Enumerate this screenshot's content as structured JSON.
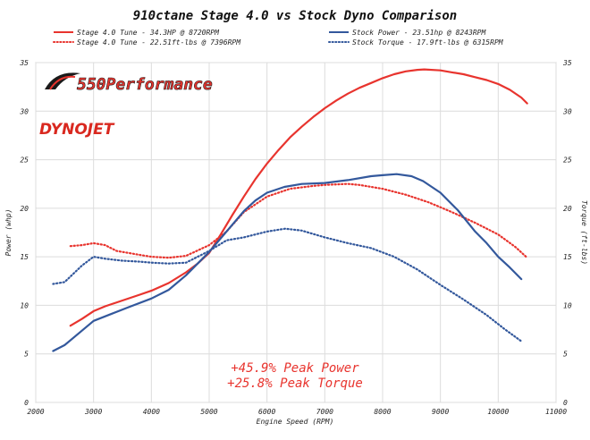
{
  "chart_data": {
    "type": "line",
    "title": "910ctane Stage 4.0 vs Stock Dyno Comparison",
    "xlabel": "Engine Speed (RPM)",
    "ylabel_left": "Power (whp)",
    "ylabel_right": "Torque (ft-lbs)",
    "xlim": [
      2000,
      11000
    ],
    "ylim": [
      0,
      35
    ],
    "xticks": [
      2000,
      3000,
      4000,
      5000,
      6000,
      7000,
      8000,
      9000,
      10000,
      11000
    ],
    "yticks": [
      0,
      5,
      10,
      15,
      20,
      25,
      30,
      35
    ],
    "grid": true,
    "legend_position": "top",
    "series": [
      {
        "name": "Stage 4.0 Tune - 34.3HP @ 8720RPM",
        "color": "#e8342e",
        "style": "solid",
        "axis": "left",
        "x": [
          2600,
          2800,
          3000,
          3200,
          3500,
          3800,
          4000,
          4300,
          4600,
          4800,
          5000,
          5200,
          5400,
          5600,
          5800,
          6000,
          6200,
          6400,
          6600,
          6800,
          7000,
          7200,
          7400,
          7600,
          7800,
          8000,
          8200,
          8400,
          8600,
          8720,
          9000,
          9200,
          9400,
          9600,
          9800,
          10000,
          10200,
          10400,
          10500
        ],
        "y": [
          7.9,
          8.6,
          9.4,
          9.9,
          10.5,
          11.1,
          11.5,
          12.3,
          13.4,
          14.3,
          15.4,
          17.3,
          19.3,
          21.2,
          23.0,
          24.6,
          26.0,
          27.3,
          28.4,
          29.4,
          30.3,
          31.1,
          31.8,
          32.4,
          32.9,
          33.4,
          33.8,
          34.1,
          34.25,
          34.3,
          34.2,
          34.0,
          33.8,
          33.5,
          33.2,
          32.8,
          32.2,
          31.4,
          30.8
        ]
      },
      {
        "name": "Stage 4.0 Tune - 22.51ft-lbs @ 7396RPM",
        "color": "#e8342e",
        "style": "dotted",
        "axis": "right",
        "x": [
          2600,
          2800,
          3000,
          3200,
          3400,
          3600,
          3800,
          4000,
          4300,
          4600,
          5000,
          5300,
          5600,
          6000,
          6400,
          6800,
          7000,
          7396,
          7600,
          8000,
          8400,
          8800,
          9200,
          9600,
          10000,
          10300,
          10500
        ],
        "y": [
          16.1,
          16.2,
          16.4,
          16.2,
          15.6,
          15.4,
          15.2,
          15.0,
          14.9,
          15.1,
          16.2,
          17.6,
          19.6,
          21.2,
          22.0,
          22.3,
          22.4,
          22.51,
          22.4,
          22.0,
          21.4,
          20.6,
          19.6,
          18.5,
          17.3,
          16.0,
          14.9
        ]
      },
      {
        "name": "Stock Power - 23.51hp @ 8243RPM",
        "color": "#33589c",
        "style": "solid",
        "axis": "left",
        "x": [
          2300,
          2500,
          2800,
          3000,
          3300,
          3600,
          4000,
          4300,
          4600,
          5000,
          5300,
          5600,
          5800,
          6000,
          6300,
          6600,
          7000,
          7400,
          7800,
          8000,
          8243,
          8500,
          8700,
          9000,
          9300,
          9600,
          9800,
          10000,
          10200,
          10400
        ],
        "y": [
          5.3,
          5.9,
          7.4,
          8.4,
          9.1,
          9.8,
          10.7,
          11.6,
          13.1,
          15.5,
          17.6,
          19.7,
          20.8,
          21.6,
          22.2,
          22.5,
          22.6,
          22.9,
          23.3,
          23.4,
          23.51,
          23.3,
          22.8,
          21.6,
          19.8,
          17.6,
          16.4,
          15.0,
          13.9,
          12.7
        ]
      },
      {
        "name": "Stock Torque - 17.9ft-lbs @ 6315RPM",
        "color": "#33589c",
        "style": "dotted",
        "axis": "right",
        "x": [
          2300,
          2500,
          2800,
          3000,
          3200,
          3500,
          3800,
          4000,
          4300,
          4600,
          5000,
          5300,
          5600,
          6000,
          6315,
          6600,
          7000,
          7400,
          7800,
          8200,
          8600,
          9000,
          9400,
          9800,
          10100,
          10400
        ],
        "y": [
          12.2,
          12.4,
          14.1,
          15.0,
          14.8,
          14.6,
          14.5,
          14.4,
          14.3,
          14.4,
          15.6,
          16.7,
          17.0,
          17.6,
          17.9,
          17.7,
          17.0,
          16.4,
          15.9,
          15.0,
          13.7,
          12.1,
          10.6,
          9.0,
          7.6,
          6.3
        ]
      }
    ],
    "annotations": [
      "+45.9% Peak Power",
      "+25.8% Peak Torque"
    ],
    "annotation_color": "#e8342e",
    "brand_logo_text": "550Performance",
    "dynojet_logo_text": "DYNOJET"
  }
}
